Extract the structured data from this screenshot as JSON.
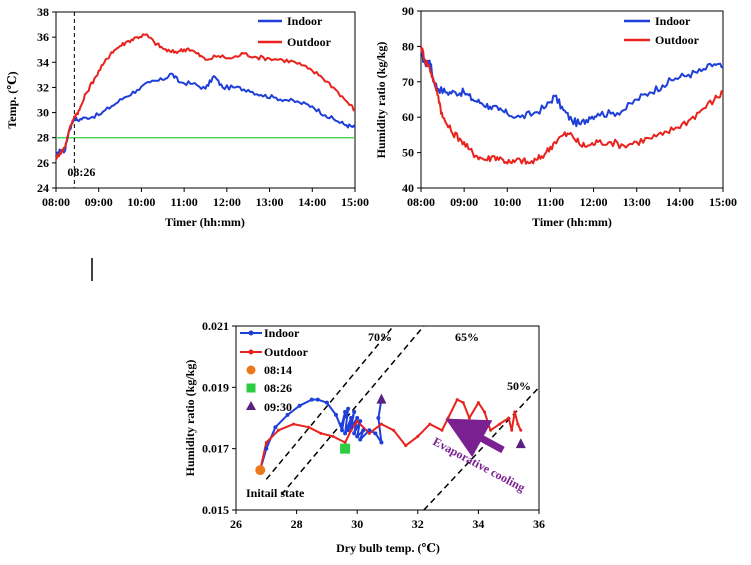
{
  "chart_data": [
    {
      "type": "line",
      "id": "temperature",
      "xlabel": "Timer (hh:mm)",
      "ylabel": "Temp. (℃)",
      "xlim": [
        8,
        15
      ],
      "ylim": [
        24,
        38
      ],
      "x_ticks": [
        "08:00",
        "09:00",
        "10:00",
        "11:00",
        "12:00",
        "13:00",
        "14:00",
        "15:00"
      ],
      "y_ticks": [
        "24",
        "26",
        "28",
        "30",
        "32",
        "34",
        "36",
        "38"
      ],
      "legend_position": "top-right",
      "grid": false,
      "reference_hline": {
        "y": 28,
        "color": "#2ecc40"
      },
      "reference_vline": {
        "x": 8.43,
        "label": "08:26",
        "style": "dashed"
      },
      "series": [
        {
          "name": "Indoor",
          "color": "#1f3fd9",
          "x": [
            8.0,
            8.1,
            8.2,
            8.3,
            8.43,
            8.5,
            8.7,
            9.0,
            9.3,
            9.6,
            9.9,
            10.2,
            10.5,
            10.7,
            10.9,
            11.2,
            11.5,
            11.7,
            11.9,
            12.2,
            12.5,
            12.8,
            13.1,
            13.4,
            13.7,
            14.0,
            14.3,
            14.6,
            14.8,
            15.0
          ],
          "y": [
            26.5,
            27.0,
            26.9,
            28.5,
            29.6,
            29.4,
            29.6,
            29.8,
            30.5,
            31.2,
            31.8,
            32.4,
            32.6,
            33.1,
            32.4,
            32.3,
            31.9,
            32.9,
            32.0,
            32.0,
            31.8,
            31.4,
            31.2,
            31.0,
            30.8,
            30.5,
            29.8,
            29.3,
            29.0,
            28.8
          ]
        },
        {
          "name": "Outdoor",
          "color": "#e8231d",
          "x": [
            8.0,
            8.1,
            8.2,
            8.3,
            8.43,
            8.55,
            8.7,
            8.9,
            9.1,
            9.3,
            9.5,
            9.7,
            9.9,
            10.1,
            10.3,
            10.5,
            10.7,
            10.9,
            11.1,
            11.3,
            11.5,
            11.8,
            12.1,
            12.4,
            12.7,
            13.0,
            13.3,
            13.6,
            13.9,
            14.2,
            14.5,
            14.8,
            15.0
          ],
          "y": [
            26.4,
            26.8,
            27.2,
            28.5,
            29.7,
            30.2,
            31.5,
            32.7,
            33.8,
            34.8,
            35.3,
            35.7,
            36.0,
            36.2,
            35.6,
            35.1,
            34.8,
            34.9,
            35.1,
            34.7,
            34.2,
            34.5,
            34.3,
            34.7,
            34.4,
            34.3,
            34.2,
            34.0,
            33.5,
            32.9,
            32.0,
            30.9,
            30.2
          ]
        }
      ]
    },
    {
      "type": "line",
      "id": "humidity-ratio",
      "xlabel": "Timer (hh:mm)",
      "ylabel": "Humidity ratio (kg/kg)",
      "xlim": [
        8,
        15
      ],
      "ylim": [
        40,
        90
      ],
      "x_ticks": [
        "08:00",
        "09:00",
        "10:00",
        "11:00",
        "12:00",
        "13:00",
        "14:00",
        "15:00"
      ],
      "y_ticks": [
        "40",
        "50",
        "60",
        "70",
        "80",
        "90"
      ],
      "legend_position": "top-right",
      "grid": false,
      "series": [
        {
          "name": "Indoor",
          "color": "#1f3fd9",
          "x": [
            8.0,
            8.1,
            8.2,
            8.3,
            8.4,
            8.6,
            8.8,
            9.0,
            9.2,
            9.4,
            9.6,
            9.8,
            10.0,
            10.3,
            10.6,
            10.9,
            11.1,
            11.3,
            11.5,
            11.7,
            11.9,
            12.1,
            12.4,
            12.7,
            13.0,
            13.3,
            13.6,
            13.9,
            14.2,
            14.5,
            14.8,
            15.0
          ],
          "y": [
            78,
            75,
            76,
            70,
            68,
            67,
            67,
            67,
            65,
            64,
            63,
            62,
            61,
            60,
            61,
            63,
            66,
            62,
            59,
            58,
            60,
            61,
            61,
            62,
            65,
            67,
            69,
            71,
            72,
            73,
            75,
            74
          ]
        },
        {
          "name": "Outdoor",
          "color": "#e8231d",
          "x": [
            8.0,
            8.1,
            8.2,
            8.3,
            8.4,
            8.5,
            8.7,
            8.9,
            9.1,
            9.3,
            9.5,
            9.7,
            9.9,
            10.1,
            10.3,
            10.5,
            10.7,
            10.9,
            11.1,
            11.3,
            11.5,
            11.7,
            11.9,
            12.1,
            12.4,
            12.7,
            13.0,
            13.3,
            13.6,
            13.9,
            14.2,
            14.5,
            14.8,
            15.0
          ],
          "y": [
            80,
            76,
            74,
            70,
            66,
            60,
            56,
            54,
            51,
            49,
            48,
            49,
            48,
            47,
            48,
            47,
            48,
            50,
            53,
            55,
            55,
            52,
            52,
            53,
            53,
            52,
            53,
            54,
            55,
            57,
            59,
            62,
            65,
            67
          ]
        }
      ]
    },
    {
      "type": "scatter",
      "id": "psychrometric",
      "xlabel": "Dry bulb temp. (℃)",
      "ylabel": "Humidity ratio (kg/kg)",
      "xlim": [
        26,
        36
      ],
      "ylim": [
        0.015,
        0.021
      ],
      "x_ticks": [
        "26",
        "28",
        "30",
        "32",
        "34",
        "36"
      ],
      "y_ticks": [
        "0.015",
        "0.017",
        "0.019",
        "0.021"
      ],
      "legend_position": "top-left",
      "grid": false,
      "rh_lines": [
        {
          "label": "70%",
          "from": [
            27.0,
            0.016
          ],
          "to": [
            31.2,
            0.021
          ]
        },
        {
          "label": "65%",
          "from": [
            27.5,
            0.0155
          ],
          "to": [
            32.2,
            0.021
          ]
        },
        {
          "label": "50%",
          "from": [
            32.2,
            0.015
          ],
          "to": [
            36.0,
            0.019
          ]
        }
      ],
      "series": [
        {
          "name": "Indoor",
          "color": "#1f3fd9",
          "x": [
            26.8,
            27.0,
            27.3,
            27.7,
            28.1,
            28.5,
            28.7,
            29.0,
            29.3,
            29.5,
            29.6,
            29.5,
            29.7,
            29.6,
            29.8,
            29.7,
            29.9,
            29.8,
            30.0,
            29.9,
            30.1,
            30.0,
            30.2,
            30.1,
            30.4,
            30.6,
            30.8,
            30.7,
            30.8
          ],
          "y": [
            0.0163,
            0.017,
            0.0177,
            0.0181,
            0.0184,
            0.0186,
            0.0186,
            0.0185,
            0.0181,
            0.0176,
            0.0182,
            0.0178,
            0.0183,
            0.0175,
            0.018,
            0.0176,
            0.0182,
            0.0177,
            0.018,
            0.0175,
            0.0179,
            0.0174,
            0.0176,
            0.0173,
            0.0176,
            0.0175,
            0.0172,
            0.018,
            0.0186
          ]
        },
        {
          "name": "Outdoor",
          "color": "#e8231d",
          "x": [
            26.8,
            27.0,
            27.4,
            27.9,
            28.4,
            28.8,
            29.2,
            29.6,
            29.8,
            30.0,
            30.4,
            30.8,
            31.2,
            31.6,
            32.0,
            32.4,
            32.8,
            33.0,
            33.3,
            33.5,
            33.7,
            34.0,
            34.2,
            34.4,
            34.7,
            35.0,
            35.1,
            35.2,
            35.3,
            35.4
          ],
          "y": [
            0.0163,
            0.0172,
            0.0176,
            0.0178,
            0.0177,
            0.0175,
            0.0174,
            0.0172,
            0.0176,
            0.0179,
            0.0175,
            0.0178,
            0.0176,
            0.0171,
            0.0174,
            0.0178,
            0.0176,
            0.018,
            0.0186,
            0.0185,
            0.018,
            0.0185,
            0.0182,
            0.0176,
            0.0178,
            0.018,
            0.0176,
            0.0182,
            0.0178,
            0.0176
          ]
        }
      ],
      "markers": [
        {
          "label": "08:14",
          "shape": "circle",
          "color": "#e87a1c",
          "x": 26.8,
          "y": 0.0163
        },
        {
          "label": "08:26",
          "shape": "square",
          "color": "#2ecc40",
          "x": 29.6,
          "y": 0.017
        },
        {
          "label": "09:30",
          "shape": "triangle",
          "color": "#5a2280",
          "x": 30.8,
          "y": 0.0186
        }
      ],
      "annotations": [
        {
          "text": "Initail state"
        },
        {
          "text": "Evaporative cooling",
          "color": "#7b2090"
        }
      ]
    }
  ]
}
